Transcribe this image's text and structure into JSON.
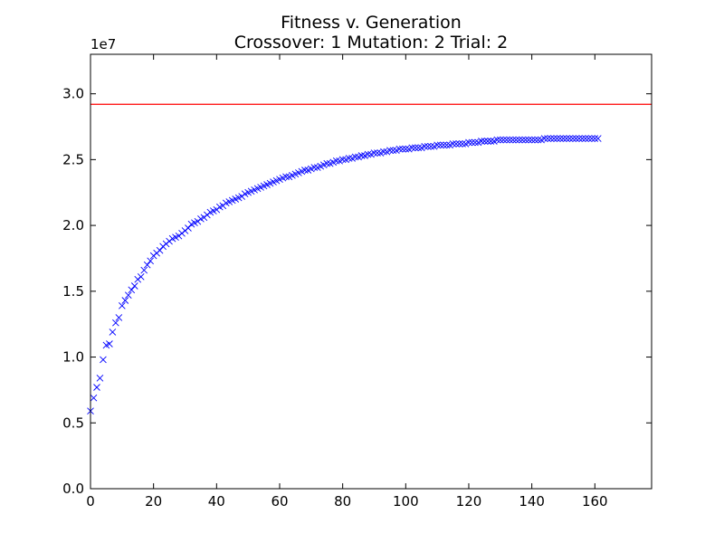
{
  "chart_data": {
    "type": "scatter",
    "title": "Fitness v. Generation",
    "subtitle": "Crossover: 1 Mutation: 2 Trial: 2",
    "xlabel": "",
    "ylabel": "",
    "y_offset_label": "1e7",
    "xlim": [
      0,
      178
    ],
    "ylim": [
      0,
      3.3
    ],
    "x_ticks": [
      0,
      20,
      40,
      60,
      80,
      100,
      120,
      140,
      160
    ],
    "x_tick_labels": [
      "0",
      "20",
      "40",
      "60",
      "80",
      "100",
      "120",
      "140",
      "160"
    ],
    "y_ticks": [
      0,
      0.5,
      1.0,
      1.5,
      2.0,
      2.5,
      3.0
    ],
    "y_tick_labels": [
      "0.0",
      "0.5",
      "1.0",
      "1.5",
      "2.0",
      "2.5",
      "3.0"
    ],
    "grid": false,
    "reference_line": {
      "y": 2.92,
      "color": "#ff0000"
    },
    "series": [
      {
        "marker": "x",
        "color": "#0000ff",
        "x": [
          0,
          1,
          2,
          3,
          4,
          5,
          6,
          7,
          8,
          9,
          10,
          11,
          12,
          13,
          14,
          15,
          16,
          17,
          18,
          19,
          20,
          21,
          22,
          23,
          24,
          25,
          26,
          27,
          28,
          29,
          30,
          31,
          32,
          33,
          34,
          35,
          36,
          37,
          38,
          39,
          40,
          41,
          42,
          43,
          44,
          45,
          46,
          47,
          48,
          49,
          50,
          51,
          52,
          53,
          54,
          55,
          56,
          57,
          58,
          59,
          60,
          61,
          62,
          63,
          64,
          65,
          66,
          67,
          68,
          69,
          70,
          71,
          72,
          73,
          74,
          75,
          76,
          77,
          78,
          79,
          80,
          81,
          82,
          83,
          84,
          85,
          86,
          87,
          88,
          89,
          90,
          91,
          92,
          93,
          94,
          95,
          96,
          97,
          98,
          99,
          100,
          101,
          102,
          103,
          104,
          105,
          106,
          107,
          108,
          109,
          110,
          111,
          112,
          113,
          114,
          115,
          116,
          117,
          118,
          119,
          120,
          121,
          122,
          123,
          124,
          125,
          126,
          127,
          128,
          129,
          130,
          131,
          132,
          133,
          134,
          135,
          136,
          137,
          138,
          139,
          140,
          141,
          142,
          143,
          144,
          145,
          146,
          147,
          148,
          149,
          150,
          151,
          152,
          153,
          154,
          155,
          156,
          157,
          158,
          159,
          160,
          161
        ],
        "y": [
          0.59,
          0.69,
          0.77,
          0.84,
          0.98,
          1.09,
          1.1,
          1.19,
          1.26,
          1.3,
          1.39,
          1.43,
          1.47,
          1.51,
          1.54,
          1.59,
          1.61,
          1.66,
          1.7,
          1.73,
          1.77,
          1.79,
          1.81,
          1.84,
          1.86,
          1.88,
          1.9,
          1.91,
          1.92,
          1.94,
          1.96,
          1.98,
          2.01,
          2.02,
          2.03,
          2.05,
          2.06,
          2.08,
          2.1,
          2.11,
          2.12,
          2.14,
          2.15,
          2.17,
          2.18,
          2.19,
          2.2,
          2.21,
          2.22,
          2.24,
          2.25,
          2.26,
          2.27,
          2.28,
          2.29,
          2.3,
          2.31,
          2.32,
          2.33,
          2.34,
          2.35,
          2.36,
          2.37,
          2.37,
          2.38,
          2.39,
          2.4,
          2.41,
          2.42,
          2.42,
          2.43,
          2.44,
          2.44,
          2.45,
          2.46,
          2.47,
          2.47,
          2.48,
          2.49,
          2.49,
          2.5,
          2.5,
          2.51,
          2.51,
          2.52,
          2.52,
          2.53,
          2.53,
          2.54,
          2.54,
          2.55,
          2.55,
          2.55,
          2.56,
          2.56,
          2.57,
          2.57,
          2.57,
          2.58,
          2.58,
          2.58,
          2.58,
          2.59,
          2.59,
          2.59,
          2.59,
          2.6,
          2.6,
          2.6,
          2.6,
          2.61,
          2.61,
          2.61,
          2.61,
          2.61,
          2.62,
          2.62,
          2.62,
          2.62,
          2.62,
          2.63,
          2.63,
          2.63,
          2.63,
          2.64,
          2.64,
          2.64,
          2.64,
          2.64,
          2.65,
          2.65,
          2.65,
          2.65,
          2.65,
          2.65,
          2.65,
          2.65,
          2.65,
          2.65,
          2.65,
          2.65,
          2.65,
          2.65,
          2.65,
          2.66,
          2.66,
          2.66,
          2.66,
          2.66,
          2.66,
          2.66,
          2.66,
          2.66,
          2.66,
          2.66,
          2.66,
          2.66,
          2.66,
          2.66,
          2.66,
          2.66,
          2.66
        ]
      }
    ],
    "colors": {
      "axes": "#000000",
      "background": "#ffffff",
      "marker": "#0000ff",
      "reference": "#ff0000"
    }
  }
}
